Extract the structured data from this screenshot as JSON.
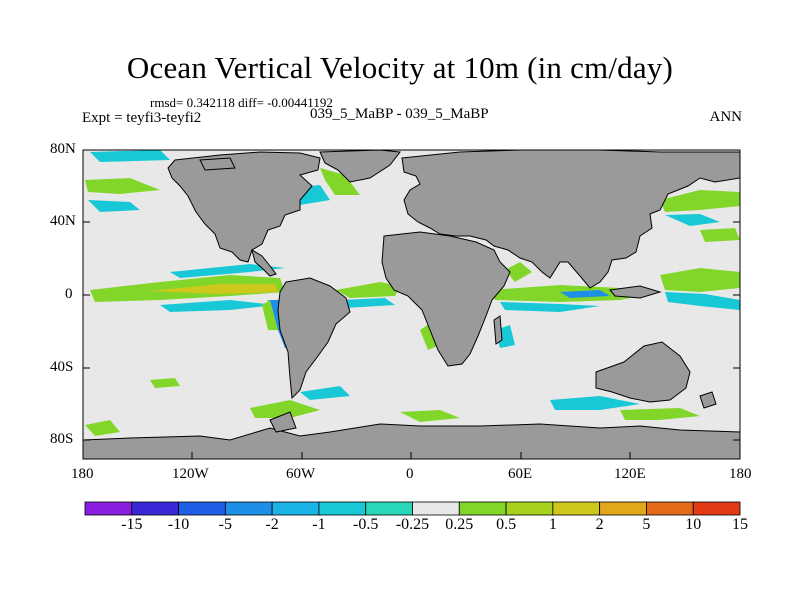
{
  "title": "Ocean Vertical Velocity at 10m (in cm/day)",
  "stats": "rmsd= 0.342118 diff= -0.00441192",
  "experiment": "Expt = teyfi3-teyfi2",
  "comparison": "039_5_MaBP - 039_5_MaBP",
  "season": "ANN",
  "axes": {
    "lat_labels": [
      "80N",
      "40N",
      "0",
      "40S",
      "80S"
    ],
    "lon_labels": [
      "180",
      "120W",
      "60W",
      "0",
      "60E",
      "120E",
      "180"
    ]
  },
  "colorbar": {
    "boundaries": [
      "-15",
      "-10",
      "-5",
      "-2",
      "-1",
      "-0.5",
      "-0.25",
      "0.25",
      "0.5",
      "1",
      "2",
      "5",
      "10",
      "15"
    ],
    "colors": [
      "#8a1ee0",
      "#3a28d8",
      "#1f5fe6",
      "#1e8fe6",
      "#1bb3e6",
      "#18c8d6",
      "#2ad6b8",
      "#e8e8e8",
      "#82d62a",
      "#a6d21e",
      "#cfc81c",
      "#e0a81a",
      "#e46a18",
      "#e33a16"
    ]
  },
  "colors": {
    "land": "#9a9a9a",
    "ocean_neutral": "#e8e8e8",
    "upwelling_light": "#82d62a",
    "upwelling_mid": "#cfc81c",
    "downwelling_light": "#18c8d6",
    "downwelling_mid": "#1e8fe6"
  }
}
